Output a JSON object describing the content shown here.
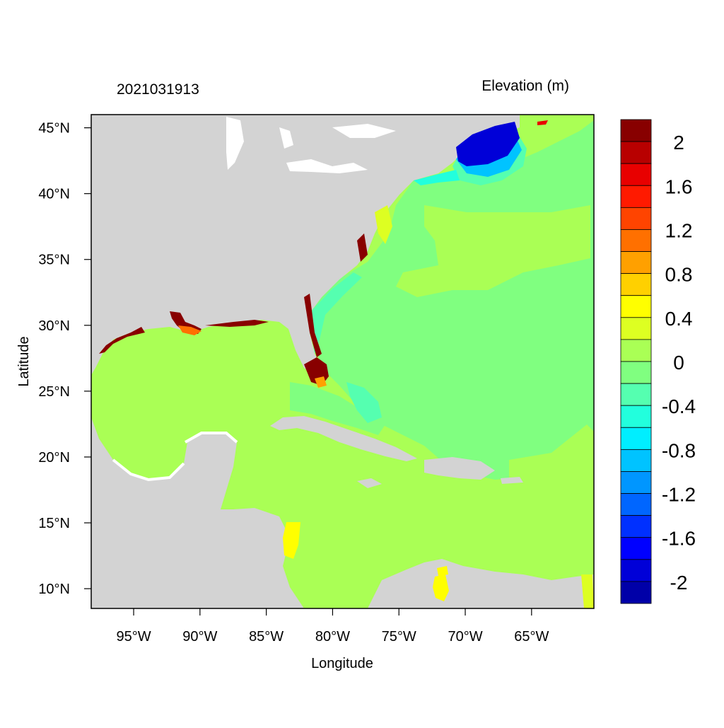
{
  "timestamp": "2021031913",
  "variable_title": "Elevation (m)",
  "axes": {
    "xlabel": "Longitude",
    "ylabel": "Latitude",
    "lon_range": [
      -98.2,
      -60.3
    ],
    "lat_range": [
      8.5,
      46.0
    ],
    "x_ticks": [
      {
        "value": -95,
        "label": "95°W"
      },
      {
        "value": -90,
        "label": "90°W"
      },
      {
        "value": -85,
        "label": "85°W"
      },
      {
        "value": -80,
        "label": "80°W"
      },
      {
        "value": -75,
        "label": "75°W"
      },
      {
        "value": -70,
        "label": "70°W"
      },
      {
        "value": -65,
        "label": "65°W"
      }
    ],
    "y_ticks": [
      {
        "value": 45,
        "label": "45°N"
      },
      {
        "value": 40,
        "label": "40°N"
      },
      {
        "value": 35,
        "label": "35°N"
      },
      {
        "value": 30,
        "label": "30°N"
      },
      {
        "value": 25,
        "label": "25°N"
      },
      {
        "value": 20,
        "label": "20°N"
      },
      {
        "value": 15,
        "label": "15°N"
      },
      {
        "value": 10,
        "label": "10°N"
      }
    ]
  },
  "colorbar": {
    "min": -2.2,
    "max": 2.2,
    "colors": [
      "#0000a8",
      "#0000d8",
      "#0000ff",
      "#0030ff",
      "#0066ff",
      "#0096ff",
      "#00c3ff",
      "#00eeff",
      "#22ffdd",
      "#55ffb0",
      "#80ff80",
      "#aaff55",
      "#ddff22",
      "#ffff00",
      "#ffd000",
      "#ffa000",
      "#ff7000",
      "#ff4400",
      "#ff1a00",
      "#e80000",
      "#b80000",
      "#880000"
    ],
    "labels": [
      {
        "value": 2,
        "text": "2"
      },
      {
        "value": 1.6,
        "text": "1.6"
      },
      {
        "value": 1.2,
        "text": "1.2"
      },
      {
        "value": 0.8,
        "text": "0.8"
      },
      {
        "value": 0.4,
        "text": "0.4"
      },
      {
        "value": 0,
        "text": "0"
      },
      {
        "value": -0.4,
        "text": "-0.4"
      },
      {
        "value": -0.8,
        "text": "-0.8"
      },
      {
        "value": -1.2,
        "text": "-1.2"
      },
      {
        "value": -1.6,
        "text": "-1.6"
      },
      {
        "value": -2,
        "text": "-2"
      }
    ]
  },
  "colors": {
    "land": "#d3d3d3",
    "ocean_near_zero_positive": "#aaff55",
    "ocean_near_zero_negative": "#80ff80",
    "negative_anomaly": "#0000d8",
    "positive_anomaly": "#880000"
  }
}
